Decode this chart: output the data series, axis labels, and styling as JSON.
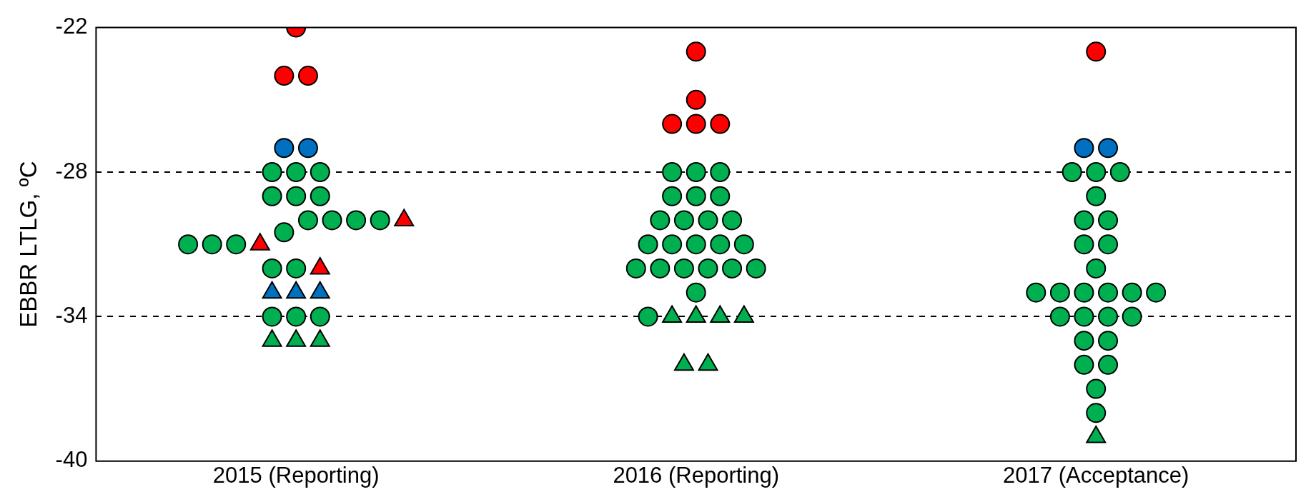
{
  "chart_data": {
    "type": "scatter",
    "ylabel": "EBBR LTLG, ºC",
    "categories": [
      "2015 (Reporting)",
      "2016 (Reporting)",
      "2017 (Acceptance)"
    ],
    "ylim": [
      -40,
      -22
    ],
    "yticks": [
      -22,
      -28,
      -34,
      -40
    ],
    "grid": "y",
    "legend": false,
    "series": [
      {
        "color": "#00b050",
        "marker": "circle",
        "x": [
          "2015 (Reporting)",
          "2015 (Reporting)",
          "2015 (Reporting)",
          "2015 (Reporting)",
          "2015 (Reporting)",
          "2015 (Reporting)",
          "2015 (Reporting)",
          "2015 (Reporting)",
          "2015 (Reporting)",
          "2015 (Reporting)",
          "2015 (Reporting)",
          "2015 (Reporting)",
          "2015 (Reporting)",
          "2015 (Reporting)",
          "2015 (Reporting)",
          "2015 (Reporting)",
          "2015 (Reporting)",
          "2015 (Reporting)",
          "2015 (Reporting)",
          "2016 (Reporting)",
          "2016 (Reporting)",
          "2016 (Reporting)",
          "2016 (Reporting)",
          "2016 (Reporting)",
          "2016 (Reporting)",
          "2016 (Reporting)",
          "2016 (Reporting)",
          "2016 (Reporting)",
          "2016 (Reporting)",
          "2016 (Reporting)",
          "2016 (Reporting)",
          "2016 (Reporting)",
          "2016 (Reporting)",
          "2016 (Reporting)",
          "2016 (Reporting)",
          "2016 (Reporting)",
          "2016 (Reporting)",
          "2016 (Reporting)",
          "2016 (Reporting)",
          "2016 (Reporting)",
          "2016 (Reporting)",
          "2016 (Reporting)",
          "2017 (Acceptance)",
          "2017 (Acceptance)",
          "2017 (Acceptance)",
          "2017 (Acceptance)",
          "2017 (Acceptance)",
          "2017 (Acceptance)",
          "2017 (Acceptance)",
          "2017 (Acceptance)",
          "2017 (Acceptance)",
          "2017 (Acceptance)",
          "2017 (Acceptance)",
          "2017 (Acceptance)",
          "2017 (Acceptance)",
          "2017 (Acceptance)",
          "2017 (Acceptance)",
          "2017 (Acceptance)",
          "2017 (Acceptance)",
          "2017 (Acceptance)",
          "2017 (Acceptance)",
          "2017 (Acceptance)",
          "2017 (Acceptance)",
          "2017 (Acceptance)",
          "2017 (Acceptance)",
          "2017 (Acceptance)",
          "2017 (Acceptance)"
        ],
        "values": [
          -28,
          -28,
          -28,
          -29,
          -29,
          -29,
          -30,
          -30,
          -30,
          -30,
          -30.5,
          -31,
          -31,
          -31,
          -32,
          -32,
          -34,
          -34,
          -34,
          -28,
          -28,
          -28,
          -29,
          -29,
          -29,
          -30,
          -30,
          -30,
          -30,
          -31,
          -31,
          -31,
          -31,
          -31,
          -32,
          -32,
          -32,
          -32,
          -32,
          -32,
          -33,
          -34,
          -28,
          -28,
          -28,
          -29,
          -30,
          -30,
          -31,
          -31,
          -32,
          -33,
          -33,
          -33,
          -33,
          -33,
          -33,
          -34,
          -34,
          -34,
          -34,
          -35,
          -35,
          -36,
          -36,
          -37,
          -38
        ]
      },
      {
        "color": "#ff0000",
        "marker": "circle",
        "x": [
          "2015 (Reporting)",
          "2015 (Reporting)",
          "2015 (Reporting)",
          "2016 (Reporting)",
          "2016 (Reporting)",
          "2016 (Reporting)",
          "2016 (Reporting)",
          "2016 (Reporting)",
          "2017 (Acceptance)"
        ],
        "values": [
          -22,
          -24,
          -24,
          -23,
          -25,
          -26,
          -26,
          -26,
          -23
        ]
      },
      {
        "color": "#0070c0",
        "marker": "circle",
        "x": [
          "2015 (Reporting)",
          "2015 (Reporting)",
          "2017 (Acceptance)",
          "2017 (Acceptance)"
        ],
        "values": [
          -27,
          -27,
          -27,
          -27
        ]
      },
      {
        "color": "#00b050",
        "marker": "triangle",
        "x": [
          "2015 (Reporting)",
          "2015 (Reporting)",
          "2015 (Reporting)",
          "2016 (Reporting)",
          "2016 (Reporting)",
          "2016 (Reporting)",
          "2016 (Reporting)",
          "2016 (Reporting)",
          "2016 (Reporting)",
          "2017 (Acceptance)"
        ],
        "values": [
          -35,
          -35,
          -35,
          -34,
          -34,
          -34,
          -34,
          -36,
          -36,
          -39
        ]
      },
      {
        "color": "#ff0000",
        "marker": "triangle",
        "x": [
          "2015 (Reporting)",
          "2015 (Reporting)",
          "2015 (Reporting)"
        ],
        "values": [
          -30,
          -31,
          -32
        ]
      },
      {
        "color": "#0070c0",
        "marker": "triangle",
        "x": [
          "2015 (Reporting)",
          "2015 (Reporting)",
          "2015 (Reporting)"
        ],
        "values": [
          -33,
          -33,
          -33
        ]
      }
    ]
  }
}
